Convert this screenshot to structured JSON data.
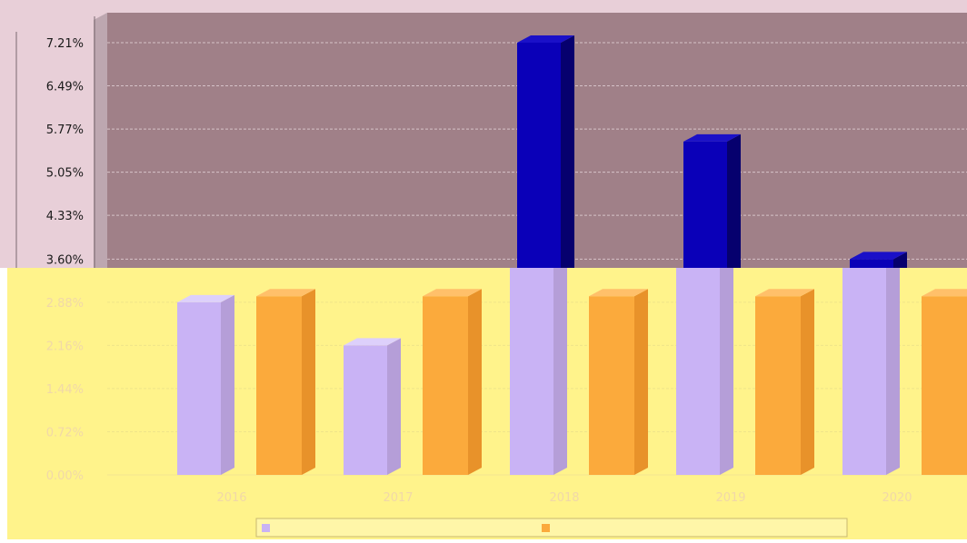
{
  "chart_data": {
    "type": "bar",
    "title": "",
    "xlabel": "",
    "ylabel": "",
    "categories": [
      "2016",
      "2017",
      "2018",
      "2019",
      "2020"
    ],
    "y_ticks": [
      "0.00%",
      "0.72%",
      "1.44%",
      "2.16%",
      "2.88%",
      "3.60%",
      "4.33%",
      "5.05%",
      "5.77%",
      "6.49%",
      "7.21%"
    ],
    "ylim": [
      0,
      7.21
    ],
    "grid": true,
    "legend_position": "bottom",
    "series": [
      {
        "values": [
          2.88,
          2.16,
          7.21,
          5.56,
          3.6
        ],
        "color": "#c9b3f5"
      },
      {
        "values": [
          2.98,
          2.98,
          2.98,
          2.98,
          2.98
        ],
        "color": "#fbaa3c"
      }
    ]
  },
  "colors": {
    "upper_panel_bg": "#e8cfd8",
    "upper_plot_bg": "#a08088",
    "lower_panel_bg": "#fff38b",
    "upper_bar": "#0a00b8",
    "lower_bar_1": "#c9b3f5",
    "lower_bar_2": "#fbaa3c"
  }
}
